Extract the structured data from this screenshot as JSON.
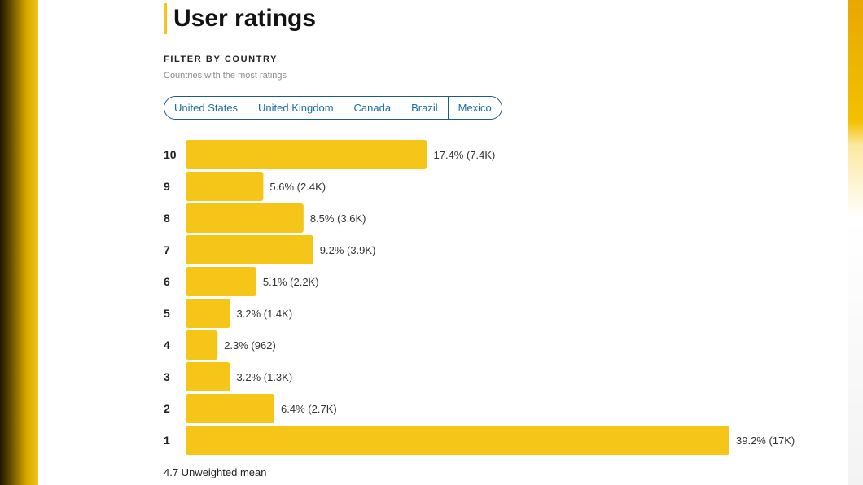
{
  "header": {
    "title": "User ratings"
  },
  "filter": {
    "label": "FILTER BY COUNTRY",
    "subtitle": "Countries with the most ratings",
    "countries": [
      "United States",
      "United Kingdom",
      "Canada",
      "Brazil",
      "Mexico"
    ]
  },
  "colors": {
    "accent": "#f5c518",
    "bar": "#f5c518",
    "link": "#1a6ea8"
  },
  "summary": {
    "mean_text": "4.7 Unweighted mean"
  },
  "chart_data": {
    "type": "bar",
    "orientation": "horizontal",
    "categories": [
      "10",
      "9",
      "8",
      "7",
      "6",
      "5",
      "4",
      "3",
      "2",
      "1"
    ],
    "values": [
      17.4,
      5.6,
      8.5,
      9.2,
      5.1,
      3.2,
      2.3,
      3.2,
      6.4,
      39.2
    ],
    "data_labels": [
      "17.4% (7.4K)",
      "5.6% (2.4K)",
      "8.5% (3.6K)",
      "9.2% (3.9K)",
      "5.1% (2.2K)",
      "3.2% (1.4K)",
      "2.3% (962)",
      "3.2% (1.3K)",
      "6.4% (2.7K)",
      "39.2% (17K)"
    ],
    "unit": "%",
    "grid": false
  }
}
